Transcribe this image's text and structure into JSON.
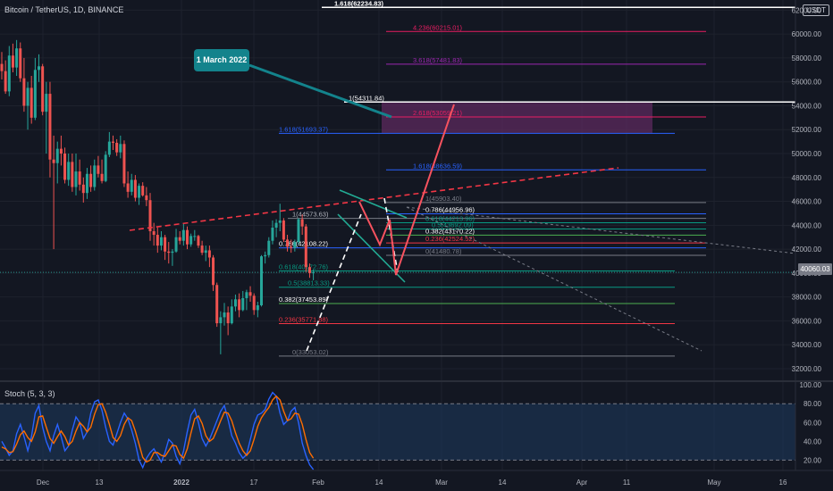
{
  "header": {
    "symbol": "Bitcoin / TetherUS, 1D, BINANCE",
    "currency_badge": "USDT",
    "current_price": "40060.03",
    "indicator": "Stoch (5, 3, 3)"
  },
  "callout": {
    "text": "1 March 2022"
  },
  "colors": {
    "background": "#131722",
    "up": "#26a69a",
    "down": "#ef5350",
    "stoch_k": "#2962ff",
    "stoch_d": "#ff6d00",
    "fib_zone": "#5c2a5e",
    "callout": "#13838c"
  },
  "chart_data": [
    {
      "type": "candlestick",
      "title": "Bitcoin / TetherUS, 1D, BINANCE",
      "x_ticks": [
        "Dec",
        "13",
        "2022",
        "17",
        "Feb",
        "14",
        "Mar",
        "14",
        "Apr",
        "11",
        "May",
        "16"
      ],
      "y_ticks": [
        32000,
        34000,
        36000,
        38000,
        40000,
        42000,
        44000,
        46000,
        48000,
        50000,
        52000,
        54000,
        56000,
        58000,
        60000,
        62000
      ],
      "ylim": [
        30950,
        62850
      ],
      "candles": [
        [
          57500,
          58500,
          56200,
          56900
        ],
        [
          56900,
          57800,
          55000,
          55200
        ],
        [
          55200,
          59000,
          54800,
          58200
        ],
        [
          58200,
          59200,
          56800,
          57200
        ],
        [
          57200,
          59500,
          56500,
          58800
        ],
        [
          58800,
          59300,
          56000,
          56300
        ],
        [
          56300,
          58000,
          53500,
          54000
        ],
        [
          54000,
          56000,
          52000,
          55500
        ],
        [
          55500,
          56500,
          52500,
          53000
        ],
        [
          53000,
          58000,
          52800,
          57000
        ],
        [
          57000,
          58300,
          56000,
          57300
        ],
        [
          57300,
          57500,
          53200,
          53500
        ],
        [
          53500,
          56000,
          50000,
          55000
        ],
        [
          55000,
          56000,
          48000,
          49500
        ],
        [
          49500,
          51500,
          42000,
          49200
        ],
        [
          49200,
          51000,
          47500,
          50400
        ],
        [
          50400,
          51500,
          49000,
          50000
        ],
        [
          50000,
          50500,
          47500,
          47800
        ],
        [
          47800,
          50000,
          47300,
          49300
        ],
        [
          49300,
          50000,
          46800,
          47200
        ],
        [
          47200,
          50000,
          46500,
          48500
        ],
        [
          48500,
          49500,
          46900,
          47400
        ],
        [
          47400,
          48000,
          45900,
          46700
        ],
        [
          46700,
          48800,
          46200,
          48300
        ],
        [
          48300,
          49000,
          46800,
          47200
        ],
        [
          47200,
          49500,
          46900,
          49000
        ],
        [
          49000,
          49800,
          48000,
          48300
        ],
        [
          48300,
          49500,
          47500,
          47700
        ],
        [
          47700,
          50200,
          47600,
          49900
        ],
        [
          49900,
          51800,
          49700,
          51000
        ],
        [
          51000,
          51500,
          50300,
          50900
        ],
        [
          50900,
          51200,
          49800,
          50100
        ],
        [
          50100,
          51500,
          49600,
          50800
        ],
        [
          50800,
          51100,
          47200,
          47500
        ],
        [
          47500,
          48500,
          46300,
          46800
        ],
        [
          46800,
          48300,
          46500,
          47800
        ],
        [
          47800,
          48200,
          46000,
          46300
        ],
        [
          46300,
          47500,
          45700,
          47300
        ],
        [
          47300,
          47600,
          46400,
          46500
        ],
        [
          46500,
          47200,
          45600,
          46100
        ],
        [
          46100,
          46700,
          42700,
          43500
        ],
        [
          43500,
          44200,
          42300,
          43200
        ],
        [
          43200,
          43800,
          41700,
          42300
        ],
        [
          42300,
          43500,
          41900,
          43000
        ],
        [
          43000,
          43200,
          41100,
          41800
        ],
        [
          41800,
          42600,
          40800,
          41700
        ],
        [
          41700,
          42000,
          40600,
          41800
        ],
        [
          41800,
          43700,
          41700,
          43000
        ],
        [
          43000,
          43500,
          42400,
          42700
        ],
        [
          42700,
          44200,
          42300,
          43600
        ],
        [
          43600,
          43900,
          42000,
          42400
        ],
        [
          42400,
          43300,
          42200,
          43100
        ],
        [
          43100,
          43600,
          42700,
          43100
        ],
        [
          43100,
          43200,
          42100,
          42300
        ],
        [
          42300,
          42700,
          41500,
          41700
        ],
        [
          41700,
          42300,
          41000,
          41900
        ],
        [
          41900,
          42300,
          40500,
          41300
        ],
        [
          41300,
          41500,
          38500,
          39000
        ],
        [
          39000,
          39200,
          35500,
          35800
        ],
        [
          35800,
          36800,
          33200,
          36300
        ],
        [
          36300,
          37500,
          35600,
          36700
        ],
        [
          36700,
          37200,
          34800,
          35800
        ],
        [
          35800,
          37800,
          35700,
          37200
        ],
        [
          37200,
          38200,
          36800,
          37800
        ],
        [
          37800,
          38300,
          36300,
          36900
        ],
        [
          36900,
          38500,
          36800,
          37900
        ],
        [
          37900,
          38600,
          36900,
          38400
        ],
        [
          38400,
          38900,
          37600,
          38100
        ],
        [
          38100,
          38300,
          36500,
          36900
        ],
        [
          36900,
          37600,
          36300,
          37300
        ],
        [
          37300,
          41500,
          37200,
          41400
        ],
        [
          41400,
          41800,
          40800,
          41500
        ],
        [
          41500,
          43000,
          41300,
          42700
        ],
        [
          42700,
          44400,
          42400,
          43800
        ],
        [
          43800,
          44500,
          43000,
          44200
        ],
        [
          44200,
          45800,
          43500,
          44400
        ],
        [
          44400,
          44600,
          42600,
          42800
        ],
        [
          42800,
          43200,
          41800,
          42200
        ],
        [
          42200,
          42800,
          41700,
          42100
        ],
        [
          42100,
          42800,
          41800,
          42600
        ],
        [
          42600,
          44600,
          42400,
          44500
        ],
        [
          44500,
          44900,
          43200,
          43900
        ],
        [
          43900,
          44100,
          40100,
          40500
        ],
        [
          40500,
          40800,
          39600,
          40000
        ],
        [
          40000,
          40300,
          39400,
          40060
        ]
      ],
      "horizontal_lines": [
        {
          "label": "1.618(62234.83)",
          "value": 62234.83
        },
        {
          "label": "4.236(60215.01)",
          "value": 60215.01
        },
        {
          "label": "3.618(57481.83)",
          "value": 57481.83
        },
        {
          "label": "1(54311.84)",
          "value": 54311.84
        },
        {
          "label": "2.618(53059.21)",
          "value": 53059.21
        },
        {
          "label": "1.618(51693.37)",
          "value": 51693.37
        },
        {
          "label": "1.618(48636.59)",
          "value": 48636.59
        },
        {
          "label": "1(45903.40)",
          "value": 45903.4
        },
        {
          "label": "0.786(44956.96)",
          "value": 44956.96
        },
        {
          "label": "1(44573.63)",
          "value": 44573.63
        },
        {
          "label": "0.618(44213.96)",
          "value": 44213.96
        },
        {
          "label": "0.5(43692.09)",
          "value": 43692.09
        },
        {
          "label": "0.382(43170.22)",
          "value": 43170.22
        },
        {
          "label": "0.236(42524.52)",
          "value": 42524.52
        },
        {
          "label": "0.786(42108.22)",
          "value": 42108.22
        },
        {
          "label": "0(41480.78)",
          "value": 41480.78
        },
        {
          "label": "0.618(40172.76)",
          "value": 40172.76
        },
        {
          "label": "0.5(38813.33)",
          "value": 38813.33
        },
        {
          "label": "0.382(37453.89)",
          "value": 37453.89
        },
        {
          "label": "0.236(35771.88)",
          "value": 35771.88
        },
        {
          "label": "0(33053.02)",
          "value": 33053.02
        }
      ]
    },
    {
      "type": "line",
      "title": "Stoch (5, 3, 3)",
      "y_ticks": [
        20,
        40,
        60,
        80,
        100
      ],
      "ylim": [
        9,
        103
      ],
      "band": [
        20,
        80
      ],
      "series": [
        {
          "values": [
            40,
            33,
            25,
            30,
            48,
            58,
            45,
            30,
            45,
            70,
            78,
            55,
            40,
            30,
            46,
            58,
            45,
            30,
            35,
            52,
            66,
            60,
            43,
            50,
            70,
            82,
            84,
            73,
            55,
            40,
            36,
            48,
            60,
            70,
            64,
            52,
            38,
            20,
            12,
            22,
            28,
            32,
            25,
            18,
            28,
            42,
            38,
            24,
            16,
            30,
            50,
            68,
            74,
            60,
            43,
            35,
            42,
            52,
            62,
            72,
            78,
            63,
            46,
            38,
            28,
            22,
            26,
            42,
            58,
            68,
            70,
            74,
            85,
            92,
            88,
            70,
            58,
            62,
            72,
            76,
            60,
            38,
            25,
            15,
            10
          ]
        },
        {
          "values": [
            34,
            32,
            28,
            29,
            37,
            47,
            51,
            44,
            40,
            50,
            66,
            67,
            55,
            43,
            38,
            45,
            51,
            45,
            36,
            40,
            51,
            60,
            56,
            50,
            55,
            69,
            79,
            80,
            71,
            58,
            44,
            40,
            46,
            58,
            65,
            62,
            51,
            37,
            23,
            18,
            20,
            28,
            28,
            25,
            24,
            30,
            36,
            35,
            26,
            22,
            32,
            49,
            64,
            67,
            59,
            46,
            40,
            43,
            52,
            62,
            71,
            70,
            62,
            49,
            38,
            30,
            25,
            30,
            42,
            56,
            65,
            71,
            76,
            84,
            88,
            84,
            72,
            62,
            64,
            70,
            69,
            58,
            42,
            28,
            22
          ]
        }
      ]
    }
  ],
  "x_axis": [
    "Dec",
    "13",
    "2022",
    "17",
    "Feb",
    "14",
    "Mar",
    "14",
    "Apr",
    "11",
    "May",
    "16"
  ]
}
